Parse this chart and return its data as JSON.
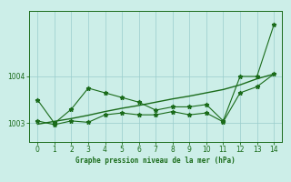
{
  "x": [
    0,
    1,
    2,
    3,
    4,
    5,
    6,
    7,
    8,
    9,
    10,
    11,
    12,
    13,
    14
  ],
  "y_main": [
    1003.5,
    1003.0,
    1003.3,
    1003.75,
    1003.65,
    1003.55,
    1003.45,
    1003.28,
    1003.35,
    1003.35,
    1003.4,
    1003.05,
    1004.0,
    1004.0,
    1005.1
  ],
  "y_low": [
    1003.05,
    1002.97,
    1003.05,
    1003.02,
    1003.18,
    1003.22,
    1003.18,
    1003.18,
    1003.25,
    1003.18,
    1003.22,
    1003.03,
    1003.65,
    1003.78,
    1004.05
  ],
  "trend": [
    1002.98,
    1003.04,
    1003.1,
    1003.17,
    1003.25,
    1003.32,
    1003.38,
    1003.45,
    1003.52,
    1003.58,
    1003.65,
    1003.72,
    1003.82,
    1003.95,
    1004.05
  ],
  "line_color": "#1a6b1a",
  "bg_color": "#cceee8",
  "title": "Graphe pression niveau de la mer (hPa)",
  "ylim": [
    1002.6,
    1005.4
  ],
  "xlim": [
    -0.5,
    14.5
  ],
  "yticks": [
    1003,
    1004
  ],
  "xticks": [
    0,
    1,
    2,
    3,
    4,
    5,
    6,
    7,
    8,
    9,
    10,
    11,
    12,
    13,
    14
  ]
}
